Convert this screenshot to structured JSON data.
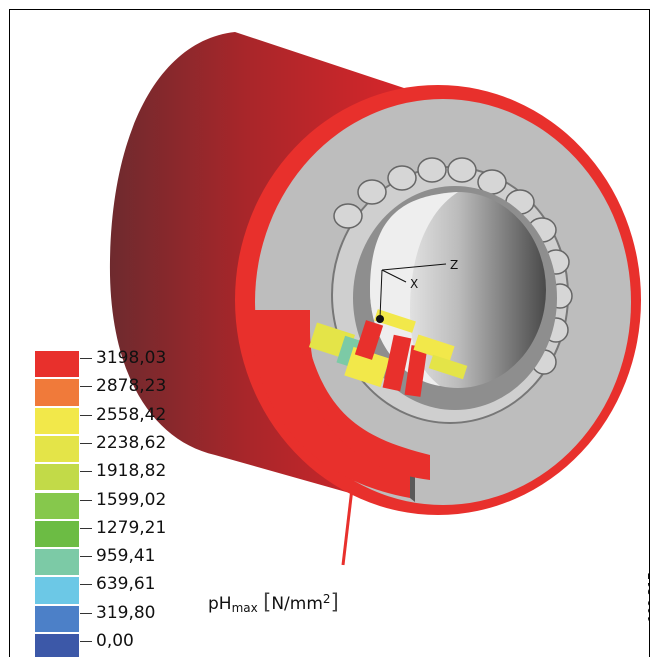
{
  "legend": {
    "values": [
      "3198,03",
      "2878,23",
      "2558,42",
      "2238,62",
      "1918,82",
      "1599,02",
      "1279,21",
      "959,41",
      "639,61",
      "319,80",
      "0,00"
    ],
    "colors": [
      "#e8302c",
      "#f07a3a",
      "#f2e84a",
      "#e4e448",
      "#c2da48",
      "#86c84c",
      "#6cbc44",
      "#7ccaa6",
      "#6cc8e6",
      "#4c80c8",
      "#3c58a8"
    ]
  },
  "quantity_label": {
    "symbol": "pH",
    "subscript": "max",
    "unit_open": "[",
    "unit": "N/mm",
    "unit_sup": "2",
    "unit_close": "]"
  },
  "axes": {
    "z": "Z",
    "x": "X"
  },
  "figure_id": "109 317",
  "colors": {
    "red": "#e8302c",
    "dark_red": "#7a2226",
    "gray": "#bdbdbd",
    "dark_gray": "#555555"
  }
}
